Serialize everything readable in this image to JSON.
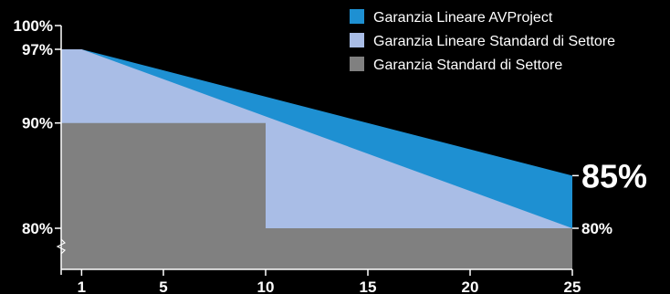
{
  "chart_data": {
    "type": "area",
    "x_ticks": [
      1,
      5,
      10,
      15,
      20,
      25
    ],
    "xlim": [
      0,
      25
    ],
    "y_ticks": [
      {
        "value": 100,
        "label": "100%"
      },
      {
        "value": 97,
        "label": "97%"
      },
      {
        "value": 90,
        "label": "90%"
      },
      {
        "value": 80,
        "label": "80%"
      }
    ],
    "y_axis_break": true,
    "series": [
      {
        "name": "Garanzia Lineare AVProject",
        "color": "#1e90d2",
        "points": [
          [
            0,
            97
          ],
          [
            1,
            97
          ],
          [
            25,
            85
          ]
        ]
      },
      {
        "name": "Garanzia Lineare Standard di Settore",
        "color": "#a9bde6",
        "points": [
          [
            0,
            97
          ],
          [
            1,
            97
          ],
          [
            25,
            80
          ]
        ]
      },
      {
        "name": "Garanzia Standard di Settore",
        "color": "#808080",
        "points": [
          [
            0,
            90
          ],
          [
            10,
            90
          ],
          [
            10,
            80
          ],
          [
            25,
            80
          ]
        ]
      }
    ],
    "end_labels": [
      {
        "value": 85,
        "label": "85%"
      },
      {
        "value": 80,
        "label": "80%"
      }
    ],
    "legend_position": "top-right"
  }
}
